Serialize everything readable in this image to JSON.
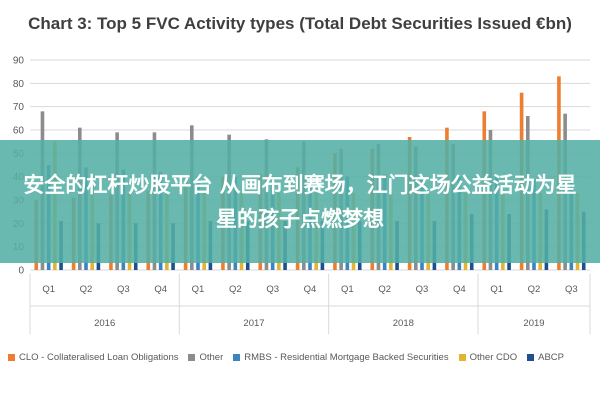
{
  "chart_data": {
    "type": "bar",
    "title": "Chart 3: Top 5 FVC Activity types (Total Debt Securities Issued €bn)",
    "xlabel": "",
    "ylabel": "",
    "ylim": [
      0,
      90
    ],
    "yticks": [
      0,
      10,
      20,
      30,
      40,
      50,
      60,
      70,
      80,
      90
    ],
    "grid": true,
    "legend_position": "bottom",
    "categories": [
      "Q1",
      "Q2",
      "Q3",
      "Q4",
      "Q1",
      "Q2",
      "Q3",
      "Q4",
      "Q1",
      "Q2",
      "Q3",
      "Q4",
      "Q1",
      "Q2",
      "Q3"
    ],
    "years": [
      {
        "label": "2016",
        "span": 4
      },
      {
        "label": "2017",
        "span": 4
      },
      {
        "label": "2018",
        "span": 4
      },
      {
        "label": "2019",
        "span": 3
      }
    ],
    "series": [
      {
        "name": "CLO - Collateralised Loan Obligations",
        "color": "#ed7d31",
        "values": [
          30,
          31,
          33,
          34,
          38,
          40,
          41,
          44,
          50,
          52,
          57,
          61,
          68,
          76,
          83
        ]
      },
      {
        "name": "Other",
        "color": "#8c8c8c",
        "values": [
          68,
          61,
          59,
          59,
          62,
          58,
          56,
          55,
          52,
          54,
          53,
          54,
          60,
          66,
          67
        ]
      },
      {
        "name": "RMBS - Residential Mortgage Backed Securities",
        "color": "#3c84c0",
        "values": [
          45,
          44,
          43,
          42,
          40,
          40,
          40,
          40,
          40,
          41,
          40,
          40,
          40,
          39,
          38
        ]
      },
      {
        "name": "Other CDO",
        "color": "#e2b531",
        "values": [
          55,
          40,
          33,
          33,
          33,
          33,
          33,
          33,
          33,
          33,
          33,
          33,
          33,
          33,
          33
        ]
      },
      {
        "name": "ABCP",
        "color": "#1f4f8f",
        "values": [
          21,
          20,
          20,
          20,
          21,
          21,
          21,
          21,
          21,
          21,
          21,
          24,
          24,
          26,
          25
        ]
      }
    ]
  },
  "overlay": {
    "text": "安全的杠杆炒股平台 从画布到赛场，江门这场公益活动为星星的孩子点燃梦想"
  }
}
